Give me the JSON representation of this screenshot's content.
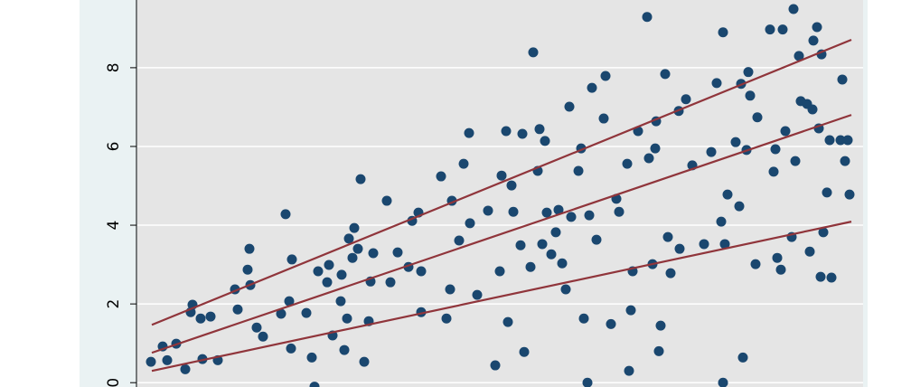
{
  "chart_data": {
    "type": "scatter",
    "xlim": [
      0,
      8.03
    ],
    "ylim": [
      -0.11,
      9.72
    ],
    "yticks": [
      0,
      2,
      4,
      6,
      8
    ],
    "grid": true,
    "series": [
      {
        "type": "scatter",
        "color": "#1a476f",
        "x": [
          0.15,
          0.28,
          0.33,
          0.43,
          0.53,
          0.59,
          0.61,
          0.7,
          0.72,
          0.81,
          0.89,
          1.08,
          1.11,
          1.22,
          1.24,
          1.25,
          1.32,
          1.39,
          1.59,
          1.64,
          1.68,
          1.7,
          1.71,
          1.87,
          1.93,
          1.96,
          2.0,
          2.1,
          2.12,
          2.16,
          2.25,
          2.26,
          2.29,
          2.32,
          2.34,
          2.38,
          2.4,
          2.44,
          2.47,
          2.51,
          2.56,
          2.58,
          2.61,
          2.76,
          2.8,
          2.88,
          3.0,
          3.04,
          3.11,
          3.14,
          3.14,
          3.36,
          3.42,
          3.46,
          3.48,
          3.56,
          3.61,
          3.67,
          3.68,
          3.76,
          3.88,
          3.96,
          4.01,
          4.03,
          4.08,
          4.1,
          4.14,
          4.16,
          4.24,
          4.26,
          4.28,
          4.35,
          4.38,
          4.43,
          4.45,
          4.48,
          4.51,
          4.53,
          4.58,
          4.63,
          4.66,
          4.7,
          4.74,
          4.78,
          4.8,
          4.88,
          4.91,
          4.94,
          4.98,
          5.0,
          5.03,
          5.08,
          5.16,
          5.18,
          5.24,
          5.3,
          5.33,
          5.42,
          5.44,
          5.46,
          5.48,
          5.54,
          5.64,
          5.66,
          5.7,
          5.73,
          5.74,
          5.77,
          5.79,
          5.84,
          5.87,
          5.9,
          5.99,
          6.0,
          6.07,
          6.14,
          6.27,
          6.35,
          6.41,
          6.46,
          6.48,
          6.48,
          6.5,
          6.53,
          6.62,
          6.66,
          6.68,
          6.7,
          6.74,
          6.76,
          6.78,
          6.84,
          6.86,
          7.0,
          7.04,
          7.06,
          7.08,
          7.12,
          7.14,
          7.17,
          7.24,
          7.26,
          7.28,
          7.32,
          7.34,
          7.41,
          7.44,
          7.47,
          7.48,
          7.52,
          7.54,
          7.56,
          7.57,
          7.59,
          7.63,
          7.66,
          7.68,
          7.78,
          7.8,
          7.83,
          7.86,
          7.88
        ],
        "values": [
          0.53,
          0.92,
          0.57,
          0.99,
          0.34,
          1.79,
          1.98,
          1.63,
          0.6,
          1.68,
          0.57,
          2.37,
          1.86,
          2.87,
          3.4,
          2.48,
          1.4,
          1.17,
          1.75,
          4.28,
          2.07,
          0.87,
          3.13,
          1.77,
          0.64,
          -0.1,
          2.83,
          2.55,
          2.99,
          1.2,
          2.07,
          2.74,
          0.83,
          1.63,
          3.66,
          3.17,
          3.93,
          3.4,
          5.17,
          0.53,
          1.56,
          2.57,
          3.29,
          4.62,
          2.55,
          3.31,
          2.94,
          4.11,
          4.32,
          2.83,
          1.79,
          5.24,
          1.63,
          2.37,
          4.62,
          3.61,
          5.56,
          6.34,
          4.05,
          2.23,
          4.37,
          0.44,
          2.83,
          5.26,
          6.39,
          1.54,
          5.01,
          4.34,
          3.49,
          6.32,
          0.78,
          2.94,
          8.39,
          5.38,
          6.44,
          3.52,
          6.14,
          4.32,
          3.26,
          3.82,
          4.39,
          3.03,
          2.37,
          7.01,
          4.21,
          5.38,
          5.95,
          1.63,
          0,
          4.25,
          7.49,
          3.63,
          6.71,
          7.79,
          1.49,
          4.67,
          4.34,
          5.56,
          0.3,
          1.84,
          2.83,
          6.39,
          9.29,
          5.7,
          3.01,
          5.95,
          6.64,
          0.8,
          1.45,
          7.84,
          3.7,
          2.78,
          6.9,
          3.4,
          7.2,
          5.52,
          3.52,
          5.86,
          7.61,
          4.09,
          0,
          8.9,
          3.52,
          4.78,
          6.11,
          4.48,
          7.59,
          0.64,
          5.91,
          7.89,
          7.29,
          3.01,
          6.74,
          8.97,
          5.36,
          5.93,
          3.17,
          2.87,
          8.97,
          6.39,
          3.7,
          9.49,
          5.63,
          8.3,
          7.15,
          7.08,
          3.33,
          6.94,
          8.69,
          9.03,
          6.46,
          2.69,
          8.34,
          3.82,
          4.83,
          6.16,
          2.67,
          6.16,
          7.7,
          5.63,
          6.16,
          4.78
        ]
      },
      {
        "type": "line",
        "color": "#90353b",
        "x": [
          0.16,
          7.9
        ],
        "values": [
          1.47,
          8.71
        ]
      },
      {
        "type": "line",
        "color": "#90353b",
        "x": [
          0.16,
          7.9
        ],
        "values": [
          0.76,
          6.8
        ]
      },
      {
        "type": "line",
        "color": "#90353b",
        "x": [
          0.16,
          7.9
        ],
        "values": [
          0.3,
          4.09
        ]
      }
    ]
  }
}
